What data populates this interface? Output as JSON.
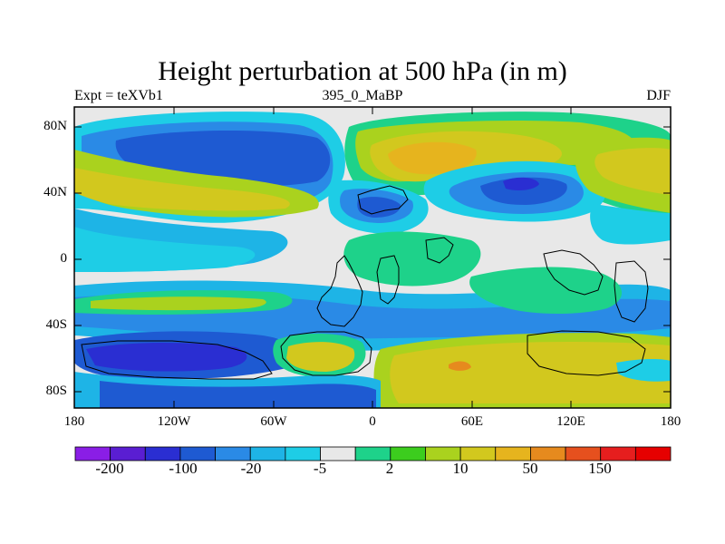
{
  "title": "Height perturbation at 500 hPa (in m)",
  "left_subtitle": "Expt = teXVb1",
  "center_subtitle": "395_0_MaBP",
  "right_subtitle": "DJF",
  "lat_labels": [
    "80N",
    "40N",
    "0",
    "40S",
    "80S"
  ],
  "lon_labels": [
    "180",
    "120W",
    "60W",
    "0",
    "60E",
    "120E",
    "180"
  ],
  "colorbar": {
    "labels": [
      "-200",
      "-100",
      "-20",
      "-5",
      "2",
      "10",
      "50",
      "150"
    ],
    "colors": [
      "#8a1ee6",
      "#5a1ed2",
      "#2a2ed2",
      "#1e5ad2",
      "#2a8ae6",
      "#1eb4e6",
      "#1ecde6",
      "#e8e8e8",
      "#1ed28a",
      "#3ccd1e",
      "#aad21e",
      "#d2c81e",
      "#e6b41e",
      "#e68a1e",
      "#e6501e",
      "#e61e1e",
      "#e60000"
    ]
  }
}
